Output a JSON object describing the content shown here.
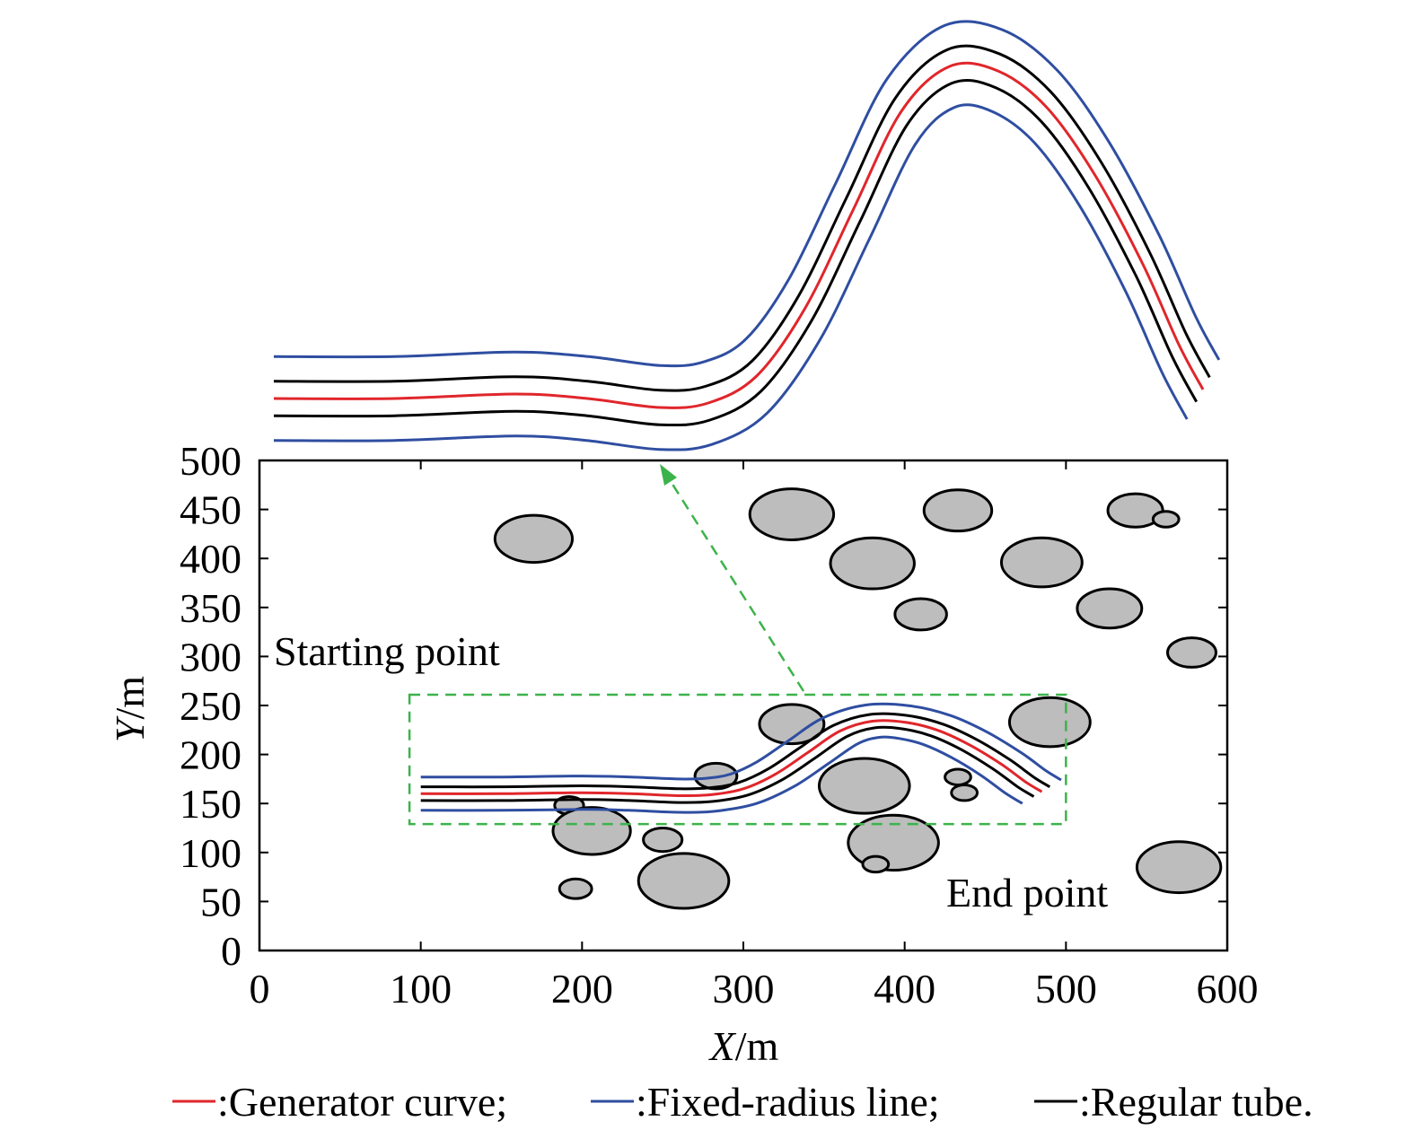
{
  "chart_data": {
    "type": "line",
    "xlabel": {
      "var": "X",
      "unit": "/m"
    },
    "ylabel": {
      "var": "Y",
      "unit": "/m"
    },
    "xlim": [
      0,
      600
    ],
    "ylim": [
      0,
      500
    ],
    "xticks": [
      "0",
      "100",
      "200",
      "300",
      "400",
      "500",
      "600"
    ],
    "yticks": [
      "0",
      "50",
      "100",
      "150",
      "200",
      "250",
      "300",
      "350",
      "400",
      "450",
      "500"
    ],
    "grid": false,
    "annotations": {
      "start": "Starting point",
      "end": "End point"
    },
    "legend": [
      {
        "name": ":Generator curve;",
        "color": "#e0262b"
      },
      {
        "name": ":Fixed-radius line;",
        "color": "#2f4ea1"
      },
      {
        "name": ":Regular tube.",
        "color": "#000000"
      }
    ],
    "colors": {
      "generator": "#e0262b",
      "fixed": "#2f4ea1",
      "tube": "#000000",
      "zoom_box": "#3cb34a",
      "obstacle_fill": "#bdbdbd"
    },
    "generator_curve": [
      [
        100,
        160
      ],
      [
        150,
        160
      ],
      [
        200,
        161
      ],
      [
        230,
        160
      ],
      [
        260,
        158
      ],
      [
        280,
        159
      ],
      [
        300,
        165
      ],
      [
        320,
        180
      ],
      [
        340,
        202
      ],
      [
        360,
        224
      ],
      [
        380,
        234
      ],
      [
        400,
        233
      ],
      [
        420,
        225
      ],
      [
        440,
        210
      ],
      [
        460,
        190
      ],
      [
        475,
        172
      ],
      [
        485,
        162
      ]
    ],
    "tube_offsets": [
      7,
      17
    ],
    "obstacles": [
      [
        170,
        420,
        24,
        24
      ],
      [
        330,
        445,
        26,
        26
      ],
      [
        380,
        395,
        26,
        26
      ],
      [
        410,
        343,
        16,
        16
      ],
      [
        433,
        449,
        21,
        21
      ],
      [
        485,
        396,
        25,
        25
      ],
      [
        527,
        349,
        20,
        20
      ],
      [
        543,
        449,
        17,
        17
      ],
      [
        562,
        440,
        8,
        8
      ],
      [
        578,
        304,
        15,
        15
      ],
      [
        330,
        231,
        20,
        20
      ],
      [
        490,
        233,
        25,
        25
      ],
      [
        283,
        178,
        13,
        13
      ],
      [
        375,
        168,
        28,
        28
      ],
      [
        433,
        177,
        8,
        8
      ],
      [
        437,
        161,
        8,
        8
      ],
      [
        192,
        148,
        9,
        9
      ],
      [
        206,
        122,
        24,
        24
      ],
      [
        250,
        113,
        12,
        12
      ],
      [
        393,
        110,
        28,
        28
      ],
      [
        382,
        88,
        8,
        8
      ],
      [
        196,
        63,
        10,
        10
      ],
      [
        263,
        71,
        28,
        28
      ],
      [
        570,
        85,
        26,
        26
      ]
    ],
    "zoom_box": {
      "x": [
        93,
        500
      ],
      "y": [
        129,
        261
      ]
    }
  }
}
